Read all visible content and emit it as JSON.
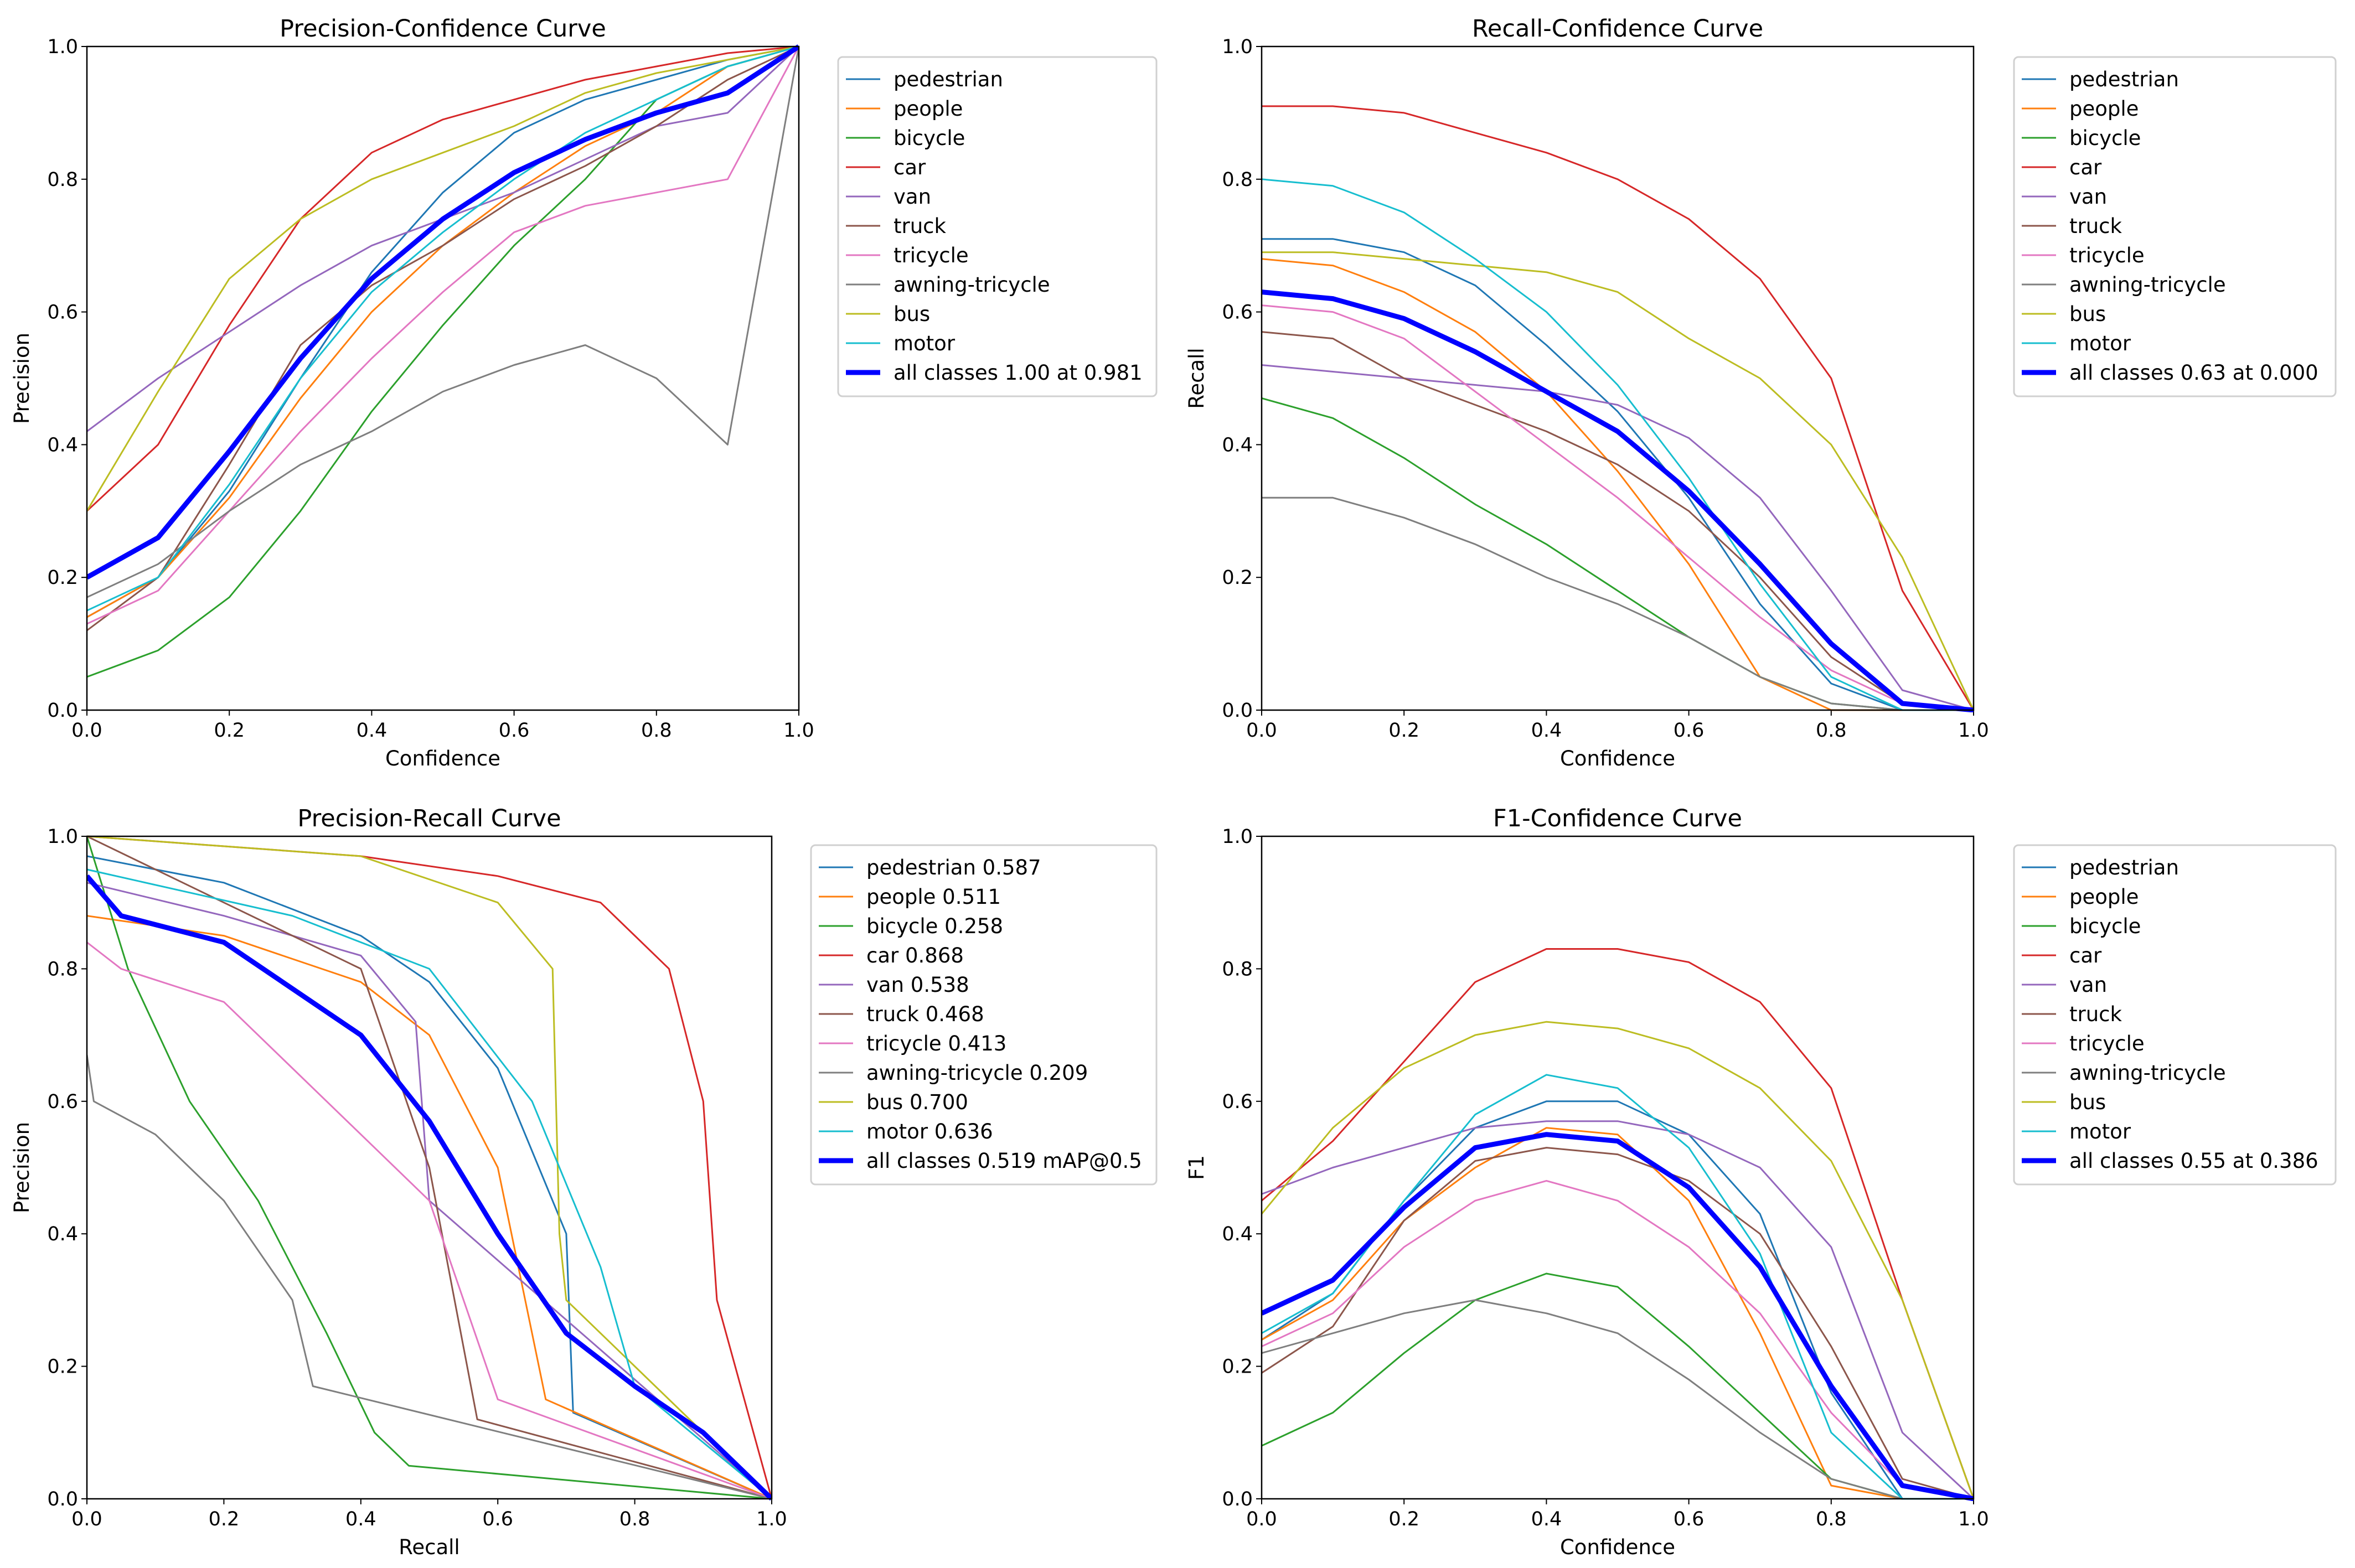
{
  "colors": {
    "pedestrian": "#1f77b4",
    "people": "#ff7f0e",
    "bicycle": "#2ca02c",
    "car": "#d62728",
    "van": "#9467bd",
    "truck": "#8c564b",
    "tricycle": "#e377c2",
    "awning-tricycle": "#7f7f7f",
    "bus": "#bcbd22",
    "motor": "#17becf",
    "all": "#0000ff"
  },
  "chart_data": [
    {
      "type": "line",
      "title": "Precision-Confidence Curve",
      "xlabel": "Confidence",
      "ylabel": "Precision",
      "xlim": [
        0,
        1
      ],
      "ylim": [
        0,
        1
      ],
      "xticks": [
        "0.0",
        "0.2",
        "0.4",
        "0.6",
        "0.8",
        "1.0"
      ],
      "yticks": [
        "0.0",
        "0.2",
        "0.4",
        "0.6",
        "0.8",
        "1.0"
      ],
      "legend_position": "outside-right",
      "x": [
        0,
        0.1,
        0.2,
        0.3,
        0.4,
        0.5,
        0.6,
        0.7,
        0.8,
        0.9,
        1.0
      ],
      "series": [
        {
          "key": "pedestrian",
          "name": "pedestrian",
          "values": [
            0.14,
            0.2,
            0.33,
            0.5,
            0.66,
            0.78,
            0.87,
            0.92,
            0.95,
            0.98,
            1
          ]
        },
        {
          "key": "people",
          "name": "people",
          "values": [
            0.14,
            0.2,
            0.32,
            0.47,
            0.6,
            0.7,
            0.78,
            0.85,
            0.9,
            0.97,
            1
          ]
        },
        {
          "key": "bicycle",
          "name": "bicycle",
          "values": [
            0.05,
            0.09,
            0.17,
            0.3,
            0.45,
            0.58,
            0.7,
            0.8,
            0.92,
            0.97,
            1
          ]
        },
        {
          "key": "car",
          "name": "car",
          "values": [
            0.3,
            0.4,
            0.58,
            0.74,
            0.84,
            0.89,
            0.92,
            0.95,
            0.97,
            0.99,
            1
          ]
        },
        {
          "key": "van",
          "name": "van",
          "values": [
            0.42,
            0.5,
            0.57,
            0.64,
            0.7,
            0.74,
            0.78,
            0.83,
            0.88,
            0.9,
            1
          ]
        },
        {
          "key": "truck",
          "name": "truck",
          "values": [
            0.12,
            0.2,
            0.37,
            0.55,
            0.64,
            0.7,
            0.77,
            0.82,
            0.88,
            0.95,
            1
          ]
        },
        {
          "key": "tricycle",
          "name": "tricycle",
          "values": [
            0.13,
            0.18,
            0.3,
            0.42,
            0.53,
            0.63,
            0.72,
            0.76,
            0.78,
            0.8,
            1
          ]
        },
        {
          "key": "awning-tricycle",
          "name": "awning-tricycle",
          "values": [
            0.17,
            0.22,
            0.3,
            0.37,
            0.42,
            0.48,
            0.52,
            0.55,
            0.5,
            0.4,
            1
          ]
        },
        {
          "key": "bus",
          "name": "bus",
          "values": [
            0.3,
            0.48,
            0.65,
            0.74,
            0.8,
            0.84,
            0.88,
            0.93,
            0.96,
            0.98,
            1
          ]
        },
        {
          "key": "motor",
          "name": "motor",
          "values": [
            0.15,
            0.2,
            0.34,
            0.5,
            0.63,
            0.72,
            0.8,
            0.87,
            0.92,
            0.97,
            1
          ]
        },
        {
          "key": "all",
          "name": "all classes 1.00 at 0.981",
          "values": [
            0.2,
            0.26,
            0.39,
            0.53,
            0.65,
            0.74,
            0.81,
            0.86,
            0.9,
            0.93,
            1
          ]
        }
      ]
    },
    {
      "type": "line",
      "title": "Recall-Confidence Curve",
      "xlabel": "Confidence",
      "ylabel": "Recall",
      "xlim": [
        0,
        1
      ],
      "ylim": [
        0,
        1
      ],
      "xticks": [
        "0.0",
        "0.2",
        "0.4",
        "0.6",
        "0.8",
        "1.0"
      ],
      "yticks": [
        "0.0",
        "0.2",
        "0.4",
        "0.6",
        "0.8",
        "1.0"
      ],
      "legend_position": "outside-right",
      "x": [
        0,
        0.1,
        0.2,
        0.3,
        0.4,
        0.5,
        0.6,
        0.7,
        0.8,
        0.9,
        1.0
      ],
      "series": [
        {
          "key": "pedestrian",
          "name": "pedestrian",
          "values": [
            0.71,
            0.71,
            0.69,
            0.64,
            0.55,
            0.45,
            0.32,
            0.16,
            0.04,
            0,
            0
          ]
        },
        {
          "key": "people",
          "name": "people",
          "values": [
            0.68,
            0.67,
            0.63,
            0.57,
            0.48,
            0.36,
            0.22,
            0.05,
            0,
            0,
            0
          ]
        },
        {
          "key": "bicycle",
          "name": "bicycle",
          "values": [
            0.47,
            0.44,
            0.38,
            0.31,
            0.25,
            0.18,
            0.11,
            0.05,
            0.01,
            0,
            0
          ]
        },
        {
          "key": "car",
          "name": "car",
          "values": [
            0.91,
            0.91,
            0.9,
            0.87,
            0.84,
            0.8,
            0.74,
            0.65,
            0.5,
            0.18,
            0
          ]
        },
        {
          "key": "van",
          "name": "van",
          "values": [
            0.52,
            0.51,
            0.5,
            0.49,
            0.48,
            0.46,
            0.41,
            0.32,
            0.18,
            0.03,
            0
          ]
        },
        {
          "key": "truck",
          "name": "truck",
          "values": [
            0.57,
            0.56,
            0.5,
            0.46,
            0.42,
            0.37,
            0.3,
            0.2,
            0.08,
            0.01,
            0
          ]
        },
        {
          "key": "tricycle",
          "name": "tricycle",
          "values": [
            0.61,
            0.6,
            0.56,
            0.48,
            0.4,
            0.32,
            0.23,
            0.14,
            0.06,
            0.01,
            0
          ]
        },
        {
          "key": "awning-tricycle",
          "name": "awning-tricycle",
          "values": [
            0.32,
            0.32,
            0.29,
            0.25,
            0.2,
            0.16,
            0.11,
            0.05,
            0.01,
            0,
            0
          ]
        },
        {
          "key": "bus",
          "name": "bus",
          "values": [
            0.69,
            0.69,
            0.68,
            0.67,
            0.66,
            0.63,
            0.56,
            0.5,
            0.4,
            0.23,
            0
          ]
        },
        {
          "key": "motor",
          "name": "motor",
          "values": [
            0.8,
            0.79,
            0.75,
            0.68,
            0.6,
            0.49,
            0.35,
            0.19,
            0.05,
            0,
            0
          ]
        },
        {
          "key": "all",
          "name": "all classes 0.63 at 0.000",
          "values": [
            0.63,
            0.62,
            0.59,
            0.54,
            0.48,
            0.42,
            0.33,
            0.22,
            0.1,
            0.01,
            0
          ]
        }
      ]
    },
    {
      "type": "line",
      "title": "Precision-Recall Curve",
      "xlabel": "Recall",
      "ylabel": "Precision",
      "xlim": [
        0,
        1
      ],
      "ylim": [
        0,
        1
      ],
      "xticks": [
        "0.0",
        "0.2",
        "0.4",
        "0.6",
        "0.8",
        "1.0"
      ],
      "yticks": [
        "0.0",
        "0.2",
        "0.4",
        "0.6",
        "0.8",
        "1.0"
      ],
      "legend_position": "outside-right",
      "series": [
        {
          "key": "pedestrian",
          "name": "pedestrian 0.587",
          "points": [
            [
              0,
              0.97
            ],
            [
              0.2,
              0.93
            ],
            [
              0.4,
              0.85
            ],
            [
              0.5,
              0.78
            ],
            [
              0.6,
              0.65
            ],
            [
              0.7,
              0.4
            ],
            [
              0.71,
              0.13
            ],
            [
              1,
              0
            ]
          ]
        },
        {
          "key": "people",
          "name": "people 0.511",
          "points": [
            [
              0,
              0.88
            ],
            [
              0.2,
              0.85
            ],
            [
              0.4,
              0.78
            ],
            [
              0.5,
              0.7
            ],
            [
              0.6,
              0.5
            ],
            [
              0.67,
              0.15
            ],
            [
              1,
              0
            ]
          ]
        },
        {
          "key": "bicycle",
          "name": "bicycle 0.258",
          "points": [
            [
              0,
              1
            ],
            [
              0.06,
              0.8
            ],
            [
              0.15,
              0.6
            ],
            [
              0.25,
              0.45
            ],
            [
              0.35,
              0.25
            ],
            [
              0.42,
              0.1
            ],
            [
              0.47,
              0.05
            ],
            [
              1,
              0
            ]
          ]
        },
        {
          "key": "car",
          "name": "car 0.868",
          "points": [
            [
              0,
              1
            ],
            [
              0.4,
              0.97
            ],
            [
              0.6,
              0.94
            ],
            [
              0.75,
              0.9
            ],
            [
              0.85,
              0.8
            ],
            [
              0.9,
              0.6
            ],
            [
              0.92,
              0.3
            ],
            [
              1,
              0
            ]
          ]
        },
        {
          "key": "van",
          "name": "van 0.538",
          "points": [
            [
              0,
              0.93
            ],
            [
              0.2,
              0.88
            ],
            [
              0.4,
              0.82
            ],
            [
              0.48,
              0.72
            ],
            [
              0.5,
              0.45
            ],
            [
              1,
              0
            ]
          ]
        },
        {
          "key": "truck",
          "name": "truck 0.468",
          "points": [
            [
              0,
              1
            ],
            [
              0.2,
              0.9
            ],
            [
              0.4,
              0.8
            ],
            [
              0.5,
              0.5
            ],
            [
              0.57,
              0.12
            ],
            [
              1,
              0
            ]
          ]
        },
        {
          "key": "tricycle",
          "name": "tricycle 0.413",
          "points": [
            [
              0,
              0.84
            ],
            [
              0.05,
              0.8
            ],
            [
              0.2,
              0.75
            ],
            [
              0.35,
              0.6
            ],
            [
              0.5,
              0.45
            ],
            [
              0.6,
              0.15
            ],
            [
              1,
              0
            ]
          ]
        },
        {
          "key": "awning-tricycle",
          "name": "awning-tricycle 0.209",
          "points": [
            [
              0,
              0.67
            ],
            [
              0.01,
              0.6
            ],
            [
              0.1,
              0.55
            ],
            [
              0.2,
              0.45
            ],
            [
              0.3,
              0.3
            ],
            [
              0.33,
              0.17
            ],
            [
              1,
              0
            ]
          ]
        },
        {
          "key": "bus",
          "name": "bus 0.700",
          "points": [
            [
              0,
              1
            ],
            [
              0.4,
              0.97
            ],
            [
              0.6,
              0.9
            ],
            [
              0.68,
              0.8
            ],
            [
              0.69,
              0.4
            ],
            [
              0.7,
              0.3
            ],
            [
              1,
              0
            ]
          ]
        },
        {
          "key": "motor",
          "name": "motor 0.636",
          "points": [
            [
              0,
              0.95
            ],
            [
              0.3,
              0.88
            ],
            [
              0.5,
              0.8
            ],
            [
              0.65,
              0.6
            ],
            [
              0.75,
              0.35
            ],
            [
              0.8,
              0.17
            ],
            [
              1,
              0
            ]
          ]
        },
        {
          "key": "all",
          "name": "all classes 0.519 mAP@0.5",
          "points": [
            [
              0,
              0.94
            ],
            [
              0.05,
              0.88
            ],
            [
              0.2,
              0.84
            ],
            [
              0.4,
              0.7
            ],
            [
              0.5,
              0.57
            ],
            [
              0.6,
              0.4
            ],
            [
              0.7,
              0.25
            ],
            [
              0.8,
              0.17
            ],
            [
              0.9,
              0.1
            ],
            [
              1,
              0
            ]
          ]
        }
      ]
    },
    {
      "type": "line",
      "title": "F1-Confidence Curve",
      "xlabel": "Confidence",
      "ylabel": "F1",
      "xlim": [
        0,
        1
      ],
      "ylim": [
        0,
        1
      ],
      "xticks": [
        "0.0",
        "0.2",
        "0.4",
        "0.6",
        "0.8",
        "1.0"
      ],
      "yticks": [
        "0.0",
        "0.2",
        "0.4",
        "0.6",
        "0.8",
        "1.0"
      ],
      "legend_position": "outside-right",
      "x": [
        0,
        0.1,
        0.2,
        0.3,
        0.4,
        0.5,
        0.6,
        0.7,
        0.8,
        0.9,
        1.0
      ],
      "series": [
        {
          "key": "pedestrian",
          "name": "pedestrian",
          "values": [
            0.24,
            0.31,
            0.45,
            0.56,
            0.6,
            0.6,
            0.55,
            0.43,
            0.16,
            0,
            0
          ]
        },
        {
          "key": "people",
          "name": "people",
          "values": [
            0.24,
            0.3,
            0.42,
            0.5,
            0.56,
            0.55,
            0.45,
            0.25,
            0.02,
            0,
            0
          ]
        },
        {
          "key": "bicycle",
          "name": "bicycle",
          "values": [
            0.08,
            0.13,
            0.22,
            0.3,
            0.34,
            0.32,
            0.23,
            0.13,
            0.03,
            0,
            0
          ]
        },
        {
          "key": "car",
          "name": "car",
          "values": [
            0.45,
            0.54,
            0.66,
            0.78,
            0.83,
            0.83,
            0.81,
            0.75,
            0.62,
            0.3,
            0
          ]
        },
        {
          "key": "van",
          "name": "van",
          "values": [
            0.46,
            0.5,
            0.53,
            0.56,
            0.57,
            0.57,
            0.55,
            0.5,
            0.38,
            0.1,
            0
          ]
        },
        {
          "key": "truck",
          "name": "truck",
          "values": [
            0.19,
            0.26,
            0.42,
            0.51,
            0.53,
            0.52,
            0.48,
            0.4,
            0.23,
            0.03,
            0
          ]
        },
        {
          "key": "tricycle",
          "name": "tricycle",
          "values": [
            0.23,
            0.28,
            0.38,
            0.45,
            0.48,
            0.45,
            0.38,
            0.28,
            0.13,
            0.02,
            0
          ]
        },
        {
          "key": "awning-tricycle",
          "name": "awning-tricycle",
          "values": [
            0.22,
            0.25,
            0.28,
            0.3,
            0.28,
            0.25,
            0.18,
            0.1,
            0.03,
            0,
            0
          ]
        },
        {
          "key": "bus",
          "name": "bus",
          "values": [
            0.43,
            0.56,
            0.65,
            0.7,
            0.72,
            0.71,
            0.68,
            0.62,
            0.51,
            0.3,
            0
          ]
        },
        {
          "key": "motor",
          "name": "motor",
          "values": [
            0.25,
            0.31,
            0.45,
            0.58,
            0.64,
            0.62,
            0.53,
            0.37,
            0.1,
            0,
            0
          ]
        },
        {
          "key": "all",
          "name": "all classes 0.55 at 0.386",
          "values": [
            0.28,
            0.33,
            0.44,
            0.53,
            0.55,
            0.54,
            0.47,
            0.35,
            0.17,
            0.02,
            0
          ]
        }
      ]
    }
  ]
}
